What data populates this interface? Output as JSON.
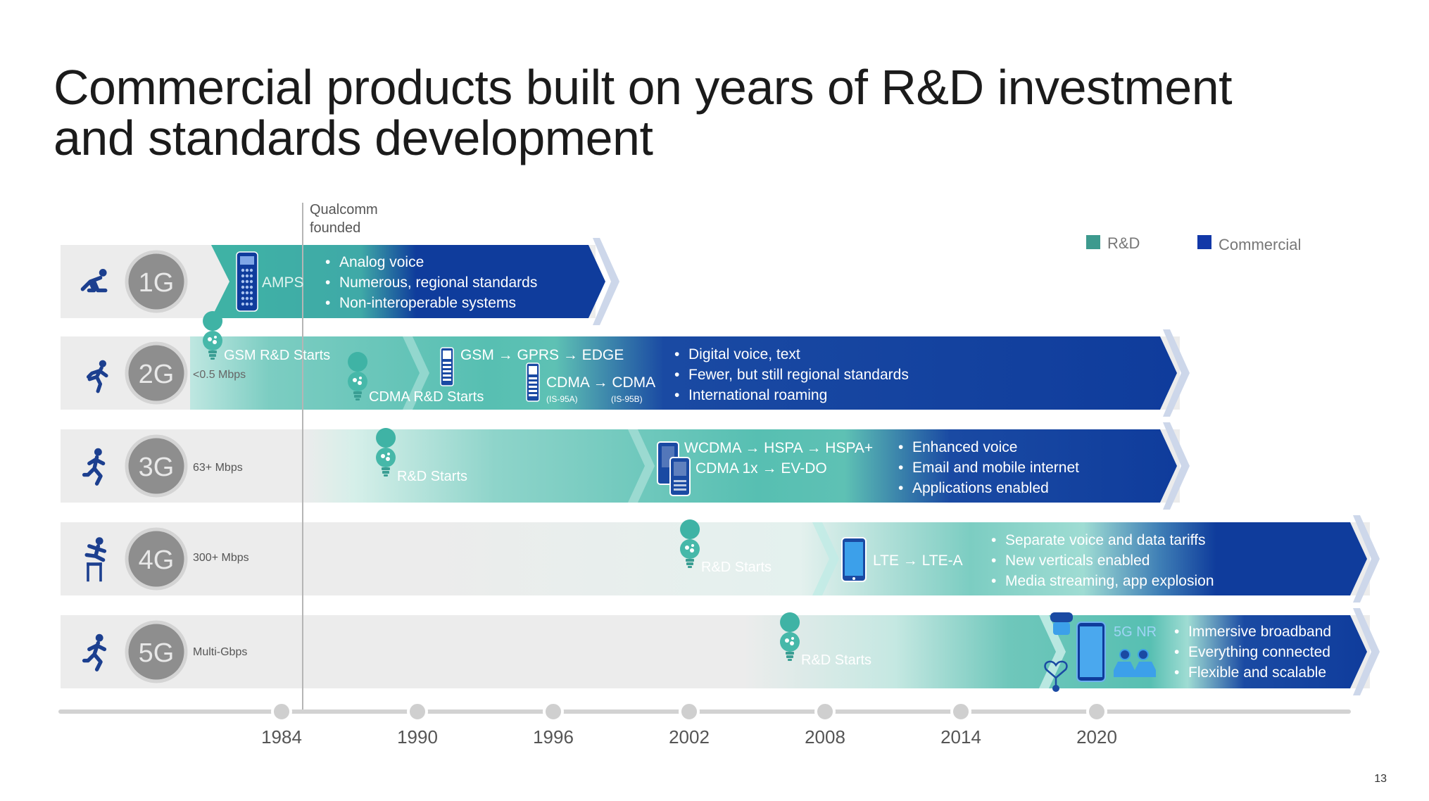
{
  "title": {
    "line1": "Commercial products built on years of R&D investment",
    "line2": "and standards development"
  },
  "legend": {
    "rd": "R&D",
    "commercial": "Commercial"
  },
  "colors": {
    "rd": "#3fb3a5",
    "rd_light": "#9fdcd3",
    "commercial": "#0f3c9c",
    "row_bg": "#ececec",
    "gen_circle": "#8e8e8e",
    "icon": "#1c3f8f"
  },
  "founded": {
    "line1": "Qualcomm",
    "line2": "founded"
  },
  "rows": [
    {
      "gen": "1G",
      "speed": "",
      "tech": [
        "AMPS"
      ],
      "bullets": [
        "Analog voice",
        "Numerous, regional standards",
        "Non-interoperable systems"
      ]
    },
    {
      "gen": "2G",
      "speed": "<0.5 Mbps",
      "rd_labels": [
        "GSM R&D Starts",
        "CDMA R&D Starts"
      ],
      "tech": [
        "GSM → GPRS → EDGE",
        "CDMA → CDMA"
      ],
      "tech_sub": [
        "(IS-95A)",
        "(IS-95B)"
      ],
      "bullets": [
        "Digital voice, text",
        "Fewer, but still regional standards",
        "International roaming"
      ]
    },
    {
      "gen": "3G",
      "speed": "63+ Mbps",
      "rd_labels": [
        "R&D Starts"
      ],
      "tech": [
        "WCDMA → HSPA → HSPA+",
        "CDMA 1x → EV-DO"
      ],
      "bullets": [
        "Enhanced voice",
        "Email and mobile internet",
        "Applications enabled"
      ]
    },
    {
      "gen": "4G",
      "speed": "300+ Mbps",
      "rd_labels": [
        "R&D Starts"
      ],
      "tech": [
        "LTE → LTE-A"
      ],
      "bullets": [
        "Separate voice and data tariffs",
        "New verticals enabled",
        "Media streaming, app explosion"
      ]
    },
    {
      "gen": "5G",
      "speed": "Multi-Gbps",
      "rd_labels": [
        "R&D Starts"
      ],
      "tech": [
        "5G NR"
      ],
      "bullets": [
        "Immersive broadband",
        "Everything connected",
        "Flexible and scalable"
      ]
    }
  ],
  "timeline": {
    "years": [
      "1984",
      "1990",
      "1996",
      "2002",
      "2008",
      "2014",
      "2020"
    ]
  },
  "page_number": "13"
}
